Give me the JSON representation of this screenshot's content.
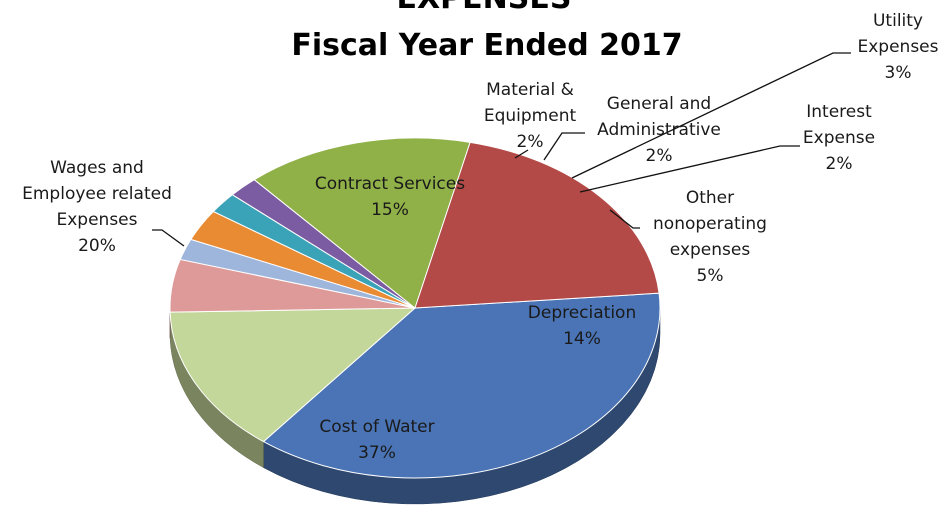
{
  "chart_data": {
    "type": "pie",
    "title": "EXPENSES",
    "subtitle": "Fiscal Year Ended 2017",
    "slices": [
      {
        "label": "Cost of Water",
        "value": 37,
        "value_label": "37%",
        "color": "#4a74b5"
      },
      {
        "label": "Depreciation",
        "value": 14,
        "value_label": "14%",
        "color": "#c4d79b"
      },
      {
        "label": "Other nonoperating expenses",
        "value": 5,
        "value_label": "5%",
        "color": "#de9a99"
      },
      {
        "label": "Interest Expense",
        "value": 2,
        "value_label": "2%",
        "color": "#9fb6dc"
      },
      {
        "label": "Utility Expenses",
        "value": 3,
        "value_label": "3%",
        "color": "#e98b33"
      },
      {
        "label": "General and Administrative",
        "value": 2,
        "value_label": "2%",
        "color": "#3ba3b8"
      },
      {
        "label": "Material & Equipment",
        "value": 2,
        "value_label": "2%",
        "color": "#7b5ba2"
      },
      {
        "label": "Contract Services",
        "value": 15,
        "value_label": "15%",
        "color": "#90b048"
      },
      {
        "label": "Wages and Employee related Expenses",
        "value": 20,
        "value_label": "20%",
        "color": "#b34a47"
      }
    ],
    "label_lines": {
      "Cost of Water": [
        "Cost of Water",
        "37%"
      ],
      "Depreciation": [
        "Depreciation",
        "14%"
      ],
      "Other nonoperating expenses": [
        "Other",
        "nonoperating",
        "expenses",
        "5%"
      ],
      "Interest Expense": [
        "Interest",
        "Expense",
        "2%"
      ],
      "Utility Expenses": [
        "Utility",
        "Expenses",
        "3%"
      ],
      "General and Administrative": [
        "General and",
        "Administrative",
        "2%"
      ],
      "Material & Equipment": [
        "Material &",
        "Equipment",
        "2%"
      ],
      "Contract Services": [
        "Contract Services",
        "15%"
      ],
      "Wages and Employee related Expenses": [
        "Wages and",
        "Employee related",
        "Expenses",
        "20%"
      ]
    },
    "legend": "none",
    "style": "3d-tilted"
  }
}
